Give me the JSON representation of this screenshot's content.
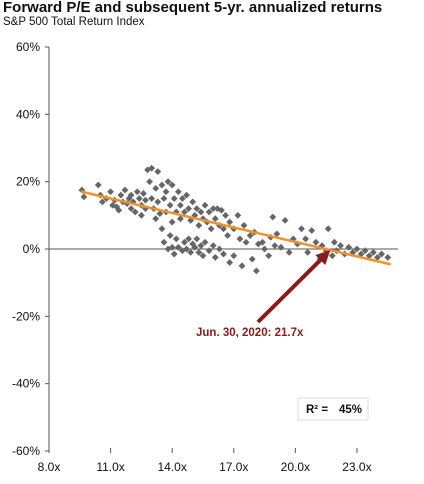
{
  "chart_data": {
    "type": "scatter",
    "title": "Forward P/E and subsequent 5-yr. annualized returns",
    "subtitle": "S&P 500 Total Return Index",
    "xlabel": "",
    "ylabel": "",
    "xlim": [
      8.0,
      25.0
    ],
    "ylim": [
      -0.6,
      0.6
    ],
    "x_ticks": [
      8,
      11,
      14,
      17,
      20,
      23
    ],
    "x_tick_labels": [
      "8.0x",
      "11.0x",
      "14.0x",
      "17.0x",
      "20.0x",
      "23.0x"
    ],
    "y_ticks": [
      0.6,
      0.4,
      0.2,
      0.0,
      -0.2,
      -0.4,
      -0.6
    ],
    "y_tick_labels": [
      "60%",
      "40%",
      "20%",
      "0%",
      "-20%",
      "-40%",
      "-60%"
    ],
    "colors": {
      "points": "#666666",
      "trend": "#f0922c",
      "arrow": "#8b1a1a",
      "axis": "#555555"
    },
    "trend_line": {
      "x": [
        9.6,
        24.6
      ],
      "y": [
        0.17,
        -0.045
      ]
    },
    "annotation": {
      "text": "Jun. 30, 2020: 21.7x",
      "x": 21.7
    },
    "r_squared": {
      "label": "R² =",
      "value": "45%"
    },
    "points": [
      [
        9.6,
        0.175
      ],
      [
        9.7,
        0.155
      ],
      [
        10.4,
        0.19
      ],
      [
        10.5,
        0.16
      ],
      [
        10.6,
        0.14
      ],
      [
        10.8,
        0.15
      ],
      [
        11.0,
        0.17
      ],
      [
        11.1,
        0.13
      ],
      [
        11.2,
        0.145
      ],
      [
        11.3,
        0.125
      ],
      [
        11.4,
        0.115
      ],
      [
        11.5,
        0.16
      ],
      [
        11.6,
        0.14
      ],
      [
        11.7,
        0.175
      ],
      [
        11.8,
        0.135
      ],
      [
        11.9,
        0.15
      ],
      [
        12.0,
        0.12
      ],
      [
        12.0,
        0.16
      ],
      [
        12.1,
        0.14
      ],
      [
        12.2,
        0.11
      ],
      [
        12.3,
        0.17
      ],
      [
        12.4,
        0.15
      ],
      [
        12.5,
        0.13
      ],
      [
        12.5,
        0.1
      ],
      [
        12.6,
        0.165
      ],
      [
        12.7,
        0.145
      ],
      [
        12.7,
        0.12
      ],
      [
        12.8,
        0.235
      ],
      [
        12.9,
        0.2
      ],
      [
        13.0,
        0.24
      ],
      [
        13.0,
        0.15
      ],
      [
        13.1,
        0.12
      ],
      [
        13.2,
        0.18
      ],
      [
        13.2,
        0.09
      ],
      [
        13.3,
        0.23
      ],
      [
        13.3,
        0.14
      ],
      [
        13.4,
        0.105
      ],
      [
        13.5,
        0.19
      ],
      [
        13.5,
        0.06
      ],
      [
        13.6,
        0.15
      ],
      [
        13.6,
        0.02
      ],
      [
        13.7,
        0.17
      ],
      [
        13.7,
        0.11
      ],
      [
        13.8,
        0.0
      ],
      [
        13.8,
        0.2
      ],
      [
        13.9,
        0.13
      ],
      [
        13.9,
        0.04
      ],
      [
        14.0,
        0.19
      ],
      [
        14.0,
        0.08
      ],
      [
        14.0,
        0.005
      ],
      [
        14.1,
        0.15
      ],
      [
        14.1,
        -0.015
      ],
      [
        14.2,
        0.11
      ],
      [
        14.2,
        0.03
      ],
      [
        14.3,
        0.17
      ],
      [
        14.3,
        0.005
      ],
      [
        14.4,
        0.13
      ],
      [
        14.4,
        0.09
      ],
      [
        14.5,
        -0.005
      ],
      [
        14.5,
        0.15
      ],
      [
        14.6,
        0.02
      ],
      [
        14.6,
        0.11
      ],
      [
        14.7,
        0.16
      ],
      [
        14.7,
        0.0
      ],
      [
        14.8,
        0.12
      ],
      [
        14.8,
        0.03
      ],
      [
        14.9,
        0.085
      ],
      [
        14.9,
        -0.01
      ],
      [
        15.0,
        0.14
      ],
      [
        15.0,
        0.015
      ],
      [
        15.1,
        0.1
      ],
      [
        15.1,
        0.005
      ],
      [
        15.2,
        0.12
      ],
      [
        15.2,
        0.03
      ],
      [
        15.3,
        0.07
      ],
      [
        15.3,
        -0.01
      ],
      [
        15.4,
        0.11
      ],
      [
        15.4,
        0.01
      ],
      [
        15.5,
        0.09
      ],
      [
        15.5,
        -0.02
      ],
      [
        15.6,
        0.13
      ],
      [
        15.6,
        0.02
      ],
      [
        15.7,
        0.08
      ],
      [
        15.8,
        0.11
      ],
      [
        15.8,
        -0.005
      ],
      [
        15.9,
        0.06
      ],
      [
        16.0,
        0.12
      ],
      [
        16.0,
        0.01
      ],
      [
        16.1,
        0.09
      ],
      [
        16.1,
        -0.025
      ],
      [
        16.2,
        0.12
      ],
      [
        16.3,
        0.07
      ],
      [
        16.3,
        0.0
      ],
      [
        16.4,
        0.115
      ],
      [
        16.5,
        0.06
      ],
      [
        16.5,
        -0.015
      ],
      [
        16.6,
        0.1
      ],
      [
        16.7,
        0.04
      ],
      [
        16.8,
        0.08
      ],
      [
        16.8,
        -0.04
      ],
      [
        17.0,
        0.06
      ],
      [
        17.0,
        -0.02
      ],
      [
        17.2,
        0.1
      ],
      [
        17.3,
        0.03
      ],
      [
        17.4,
        -0.05
      ],
      [
        17.5,
        0.07
      ],
      [
        17.6,
        0.02
      ],
      [
        17.8,
        0.04
      ],
      [
        17.9,
        -0.03
      ],
      [
        18.0,
        0.05
      ],
      [
        18.1,
        -0.065
      ],
      [
        18.2,
        0.015
      ],
      [
        18.4,
        0.02
      ],
      [
        18.5,
        0.0
      ],
      [
        18.7,
        -0.02
      ],
      [
        18.8,
        0.035
      ],
      [
        18.9,
        0.095
      ],
      [
        19.0,
        0.01
      ],
      [
        19.1,
        0.045
      ],
      [
        19.3,
        0.005
      ],
      [
        19.5,
        0.085
      ],
      [
        19.7,
        -0.01
      ],
      [
        19.9,
        0.03
      ],
      [
        20.1,
        0.015
      ],
      [
        20.3,
        0.06
      ],
      [
        20.5,
        0.03
      ],
      [
        20.6,
        -0.01
      ],
      [
        20.8,
        0.055
      ],
      [
        21.0,
        0.02
      ],
      [
        21.2,
        -0.03
      ],
      [
        21.3,
        0.01
      ],
      [
        21.5,
        -0.005
      ],
      [
        21.6,
        0.06
      ],
      [
        21.8,
        -0.02
      ],
      [
        21.9,
        0.02
      ],
      [
        22.0,
        -0.005
      ],
      [
        22.2,
        0.01
      ],
      [
        22.4,
        -0.015
      ],
      [
        22.6,
        0.005
      ],
      [
        22.8,
        -0.01
      ],
      [
        23.0,
        0.0
      ],
      [
        23.2,
        -0.015
      ],
      [
        23.4,
        -0.005
      ],
      [
        23.6,
        -0.02
      ],
      [
        23.8,
        -0.01
      ],
      [
        24.0,
        -0.025
      ],
      [
        24.2,
        -0.015
      ],
      [
        24.5,
        -0.025
      ]
    ]
  }
}
